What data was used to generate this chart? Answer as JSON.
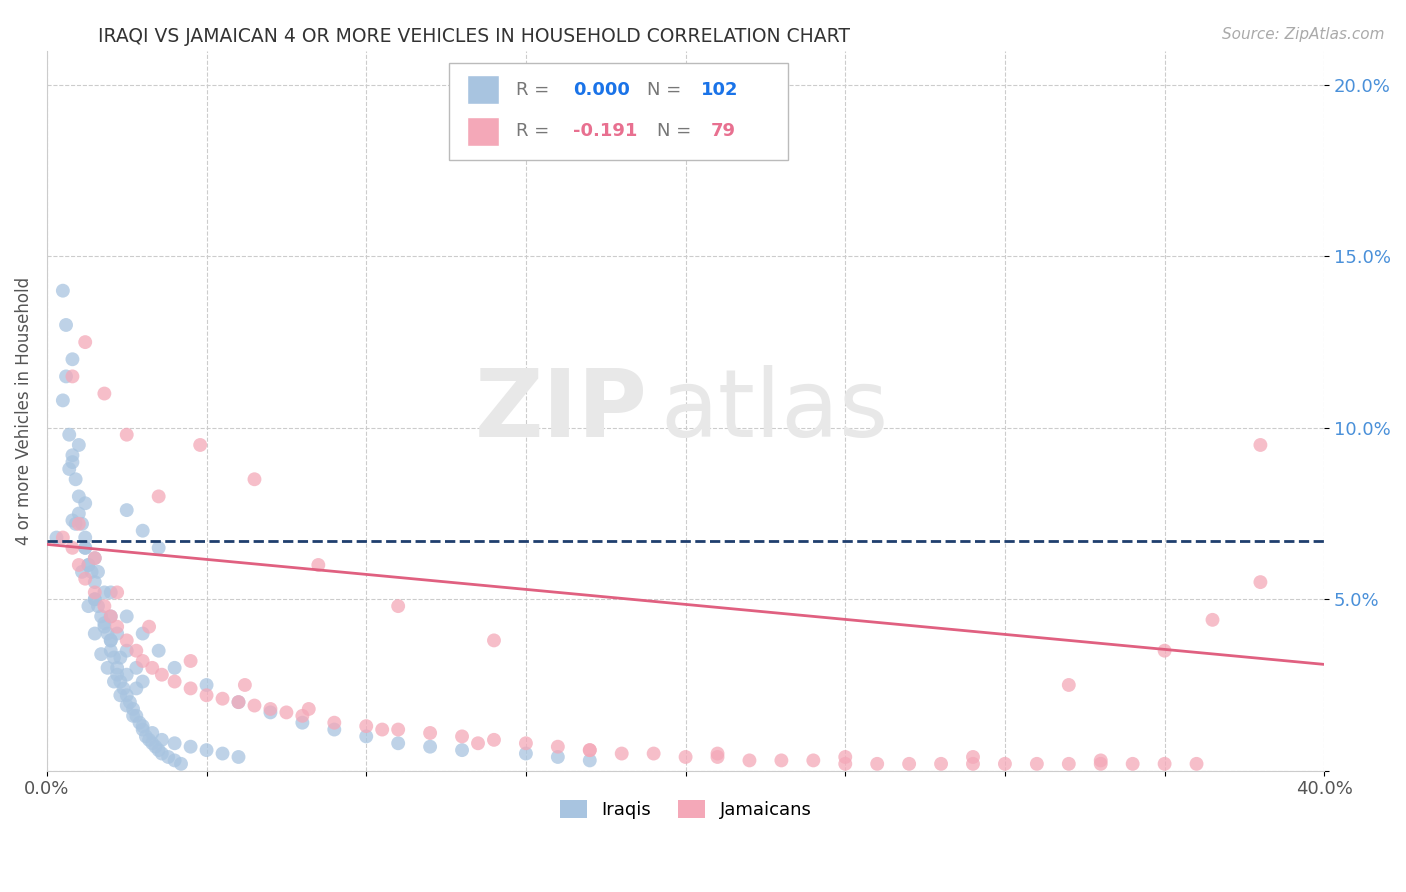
{
  "title": "IRAQI VS JAMAICAN 4 OR MORE VEHICLES IN HOUSEHOLD CORRELATION CHART",
  "source_text": "Source: ZipAtlas.com",
  "ylabel": "4 or more Vehicles in Household",
  "xmin": 0.0,
  "xmax": 0.4,
  "ymin": 0.0,
  "ymax": 0.21,
  "iraqi_color": "#a8c4e0",
  "jamaican_color": "#f4a8b8",
  "iraqi_line_color": "#1f3f6e",
  "jamaican_line_color": "#e06080",
  "watermark_zip": "ZIP",
  "watermark_atlas": "atlas",
  "legend_r_color_iraqi": "#1a73e8",
  "legend_r_color_jamaican": "#e87090",
  "bottom_legend_labels": [
    "Iraqis",
    "Jamaicans"
  ],
  "bottom_legend_colors": [
    "#a8c4e0",
    "#f4a8b8"
  ],
  "ytick_color": "#4a90d9",
  "iraqi_scatter_x": [
    0.003,
    0.005,
    0.006,
    0.007,
    0.008,
    0.009,
    0.01,
    0.011,
    0.012,
    0.012,
    0.013,
    0.014,
    0.015,
    0.015,
    0.016,
    0.017,
    0.018,
    0.019,
    0.02,
    0.02,
    0.021,
    0.022,
    0.022,
    0.023,
    0.024,
    0.025,
    0.026,
    0.027,
    0.028,
    0.029,
    0.03,
    0.031,
    0.032,
    0.033,
    0.034,
    0.035,
    0.036,
    0.038,
    0.04,
    0.042,
    0.008,
    0.01,
    0.012,
    0.015,
    0.018,
    0.02,
    0.022,
    0.025,
    0.028,
    0.03,
    0.006,
    0.008,
    0.01,
    0.013,
    0.015,
    0.018,
    0.02,
    0.023,
    0.025,
    0.028,
    0.005,
    0.007,
    0.009,
    0.011,
    0.013,
    0.015,
    0.017,
    0.019,
    0.021,
    0.023,
    0.025,
    0.027,
    0.03,
    0.033,
    0.036,
    0.04,
    0.045,
    0.05,
    0.055,
    0.06,
    0.008,
    0.012,
    0.016,
    0.02,
    0.025,
    0.03,
    0.035,
    0.04,
    0.05,
    0.06,
    0.07,
    0.08,
    0.09,
    0.1,
    0.11,
    0.12,
    0.13,
    0.15,
    0.16,
    0.17,
    0.025,
    0.03,
    0.035
  ],
  "iraqi_scatter_y": [
    0.068,
    0.14,
    0.13,
    0.098,
    0.09,
    0.085,
    0.08,
    0.072,
    0.068,
    0.065,
    0.06,
    0.058,
    0.055,
    0.05,
    0.048,
    0.045,
    0.043,
    0.04,
    0.038,
    0.035,
    0.033,
    0.03,
    0.028,
    0.026,
    0.024,
    0.022,
    0.02,
    0.018,
    0.016,
    0.014,
    0.012,
    0.01,
    0.009,
    0.008,
    0.007,
    0.006,
    0.005,
    0.004,
    0.003,
    0.002,
    0.12,
    0.095,
    0.078,
    0.062,
    0.052,
    0.045,
    0.04,
    0.035,
    0.03,
    0.026,
    0.115,
    0.092,
    0.075,
    0.06,
    0.05,
    0.042,
    0.038,
    0.033,
    0.028,
    0.024,
    0.108,
    0.088,
    0.072,
    0.058,
    0.048,
    0.04,
    0.034,
    0.03,
    0.026,
    0.022,
    0.019,
    0.016,
    0.013,
    0.011,
    0.009,
    0.008,
    0.007,
    0.006,
    0.005,
    0.004,
    0.073,
    0.065,
    0.058,
    0.052,
    0.045,
    0.04,
    0.035,
    0.03,
    0.025,
    0.02,
    0.017,
    0.014,
    0.012,
    0.01,
    0.008,
    0.007,
    0.006,
    0.005,
    0.004,
    0.003,
    0.076,
    0.07,
    0.065
  ],
  "jamaican_scatter_x": [
    0.005,
    0.008,
    0.01,
    0.012,
    0.015,
    0.018,
    0.02,
    0.022,
    0.025,
    0.028,
    0.03,
    0.033,
    0.036,
    0.04,
    0.045,
    0.05,
    0.055,
    0.06,
    0.065,
    0.07,
    0.075,
    0.08,
    0.09,
    0.1,
    0.11,
    0.12,
    0.13,
    0.14,
    0.15,
    0.16,
    0.17,
    0.18,
    0.19,
    0.2,
    0.21,
    0.22,
    0.23,
    0.24,
    0.25,
    0.26,
    0.27,
    0.28,
    0.29,
    0.3,
    0.31,
    0.32,
    0.33,
    0.34,
    0.35,
    0.36,
    0.008,
    0.012,
    0.018,
    0.025,
    0.035,
    0.048,
    0.065,
    0.085,
    0.11,
    0.14,
    0.01,
    0.015,
    0.022,
    0.032,
    0.045,
    0.062,
    0.082,
    0.105,
    0.135,
    0.17,
    0.21,
    0.25,
    0.29,
    0.33,
    0.365,
    0.38,
    0.38,
    0.35,
    0.32
  ],
  "jamaican_scatter_y": [
    0.068,
    0.065,
    0.06,
    0.056,
    0.052,
    0.048,
    0.045,
    0.042,
    0.038,
    0.035,
    0.032,
    0.03,
    0.028,
    0.026,
    0.024,
    0.022,
    0.021,
    0.02,
    0.019,
    0.018,
    0.017,
    0.016,
    0.014,
    0.013,
    0.012,
    0.011,
    0.01,
    0.009,
    0.008,
    0.007,
    0.006,
    0.005,
    0.005,
    0.004,
    0.004,
    0.003,
    0.003,
    0.003,
    0.002,
    0.002,
    0.002,
    0.002,
    0.002,
    0.002,
    0.002,
    0.002,
    0.002,
    0.002,
    0.002,
    0.002,
    0.115,
    0.125,
    0.11,
    0.098,
    0.08,
    0.095,
    0.085,
    0.06,
    0.048,
    0.038,
    0.072,
    0.062,
    0.052,
    0.042,
    0.032,
    0.025,
    0.018,
    0.012,
    0.008,
    0.006,
    0.005,
    0.004,
    0.004,
    0.003,
    0.044,
    0.095,
    0.055,
    0.035,
    0.025
  ],
  "iraqi_trend_x": [
    0.0,
    0.4
  ],
  "iraqi_trend_y": [
    0.067,
    0.067
  ],
  "jamaican_trend_x": [
    0.0,
    0.4
  ],
  "jamaican_trend_y": [
    0.066,
    0.031
  ]
}
